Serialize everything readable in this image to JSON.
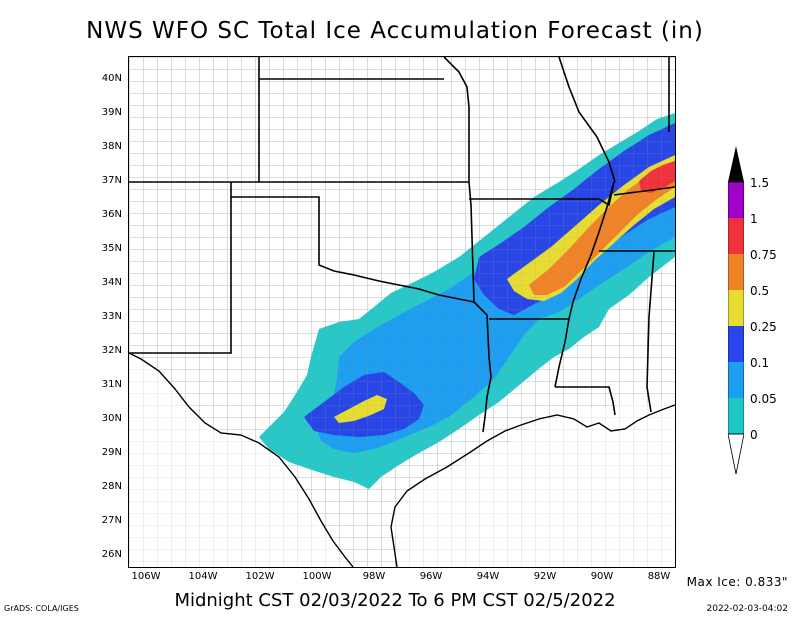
{
  "title": "NWS WFO SC Total Ice Accumulation Forecast (in)",
  "subtitle": "Midnight CST 02/03/2022 To 6 PM CST 02/5/2022",
  "max_ice": "Max Ice: 0.833\"",
  "credit": "GrADS: COLA/IGES",
  "timestamp": "2022-02-03-04:02",
  "lat_labels": [
    "40N",
    "39N",
    "38N",
    "37N",
    "36N",
    "35N",
    "34N",
    "33N",
    "32N",
    "31N",
    "30N",
    "29N",
    "28N",
    "27N",
    "26N"
  ],
  "lon_labels": [
    "106W",
    "104W",
    "102W",
    "100W",
    "98W",
    "96W",
    "94W",
    "92W",
    "90W",
    "88W"
  ],
  "legend": {
    "labels": [
      "1.5",
      "1",
      "0.75",
      "0.5",
      "0.25",
      "0.1",
      "0.05",
      "0"
    ],
    "colors": [
      "#000000",
      "#a000c8",
      "#f0323c",
      "#f08228",
      "#e6dc32",
      "#2846f0",
      "#1e9ef0",
      "#1ec8c8",
      "#ffffff"
    ]
  },
  "ice_colors": {
    "c005": "#28c8c8",
    "c01": "#1e9ef0",
    "c025": "#2846e6",
    "c05": "#e6dc32",
    "c075": "#f08228",
    "c1": "#f0323c"
  }
}
